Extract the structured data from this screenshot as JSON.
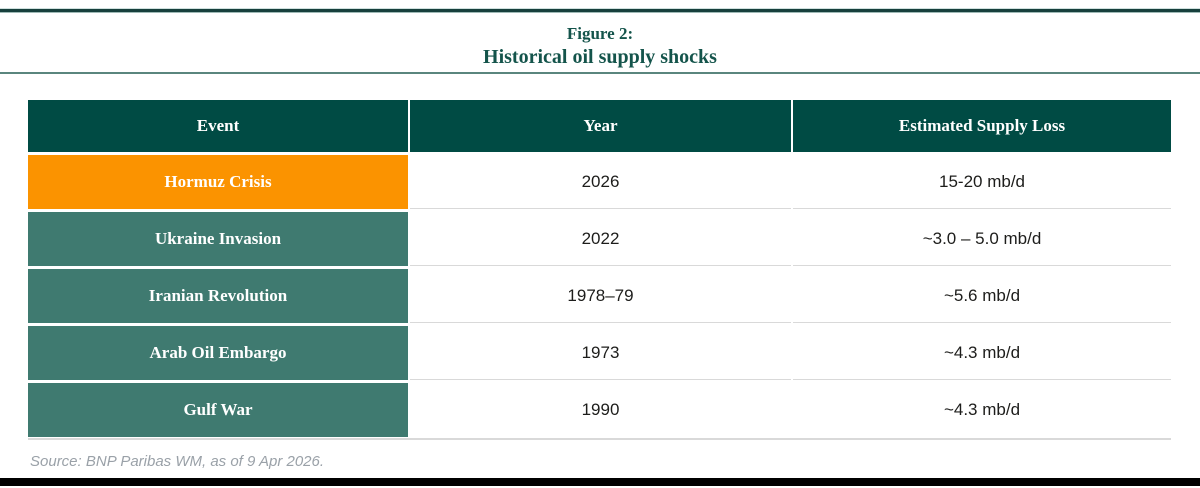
{
  "figure": {
    "title_line1": "Figure 2:",
    "title_line2": "Historical oil supply shocks",
    "source_note": "Source: BNP Paribas WM, as of 9 Apr 2026."
  },
  "chart_data": {
    "type": "table",
    "title": "Figure 2: Historical oil supply shocks",
    "columns": [
      "Event",
      "Year",
      "Estimated Supply Loss"
    ],
    "rows": [
      {
        "event": "Hormuz Crisis",
        "year": "2026",
        "loss": "15-20 mb/d",
        "highlight": true
      },
      {
        "event": "Ukraine Invasion",
        "year": "2022",
        "loss": "~3.0 – 5.0 mb/d",
        "highlight": false
      },
      {
        "event": "Iranian Revolution",
        "year": "1978–79",
        "loss": "~5.6 mb/d",
        "highlight": false
      },
      {
        "event": "Arab Oil Embargo",
        "year": "1973",
        "loss": "~4.3 mb/d",
        "highlight": false
      },
      {
        "event": "Gulf War",
        "year": "1990",
        "loss": "~4.3 mb/d",
        "highlight": false
      }
    ],
    "layout": {
      "highlight_row": "Hormuz Crisis",
      "column_alignment": "center",
      "source_position": "bottom-left"
    },
    "colors": {
      "header_bg": "#004B44",
      "header_text": "#FFFFFF",
      "highlight_bg": "#FB9300",
      "row_bg": "#3F7A70",
      "title_color": "#14544B",
      "value_text": "#1D1D1B",
      "source_text": "#9AA1A8",
      "divider": "#D9D9D9",
      "rule": "#5A867E",
      "top_bar": "#17403C",
      "bottom_bar": "#000000"
    }
  }
}
